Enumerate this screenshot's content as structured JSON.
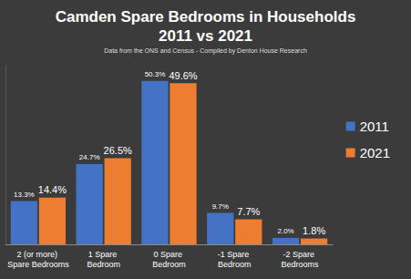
{
  "chart_data": {
    "type": "bar",
    "title": "Camden Spare Bedrooms in Households\n2011 vs 2021",
    "subtitle": "Data from the ONS and Census - Compiled by Denton House Research",
    "categories": [
      "2 (or more) Spare Bedrooms",
      "1 Spare Bedroom",
      "0 Spare Bedroom",
      "-1 Spare Bedroom",
      "-2 Spare Bedrooms"
    ],
    "series": [
      {
        "name": "2011",
        "color": "#4472c4",
        "values": [
          13.3,
          24.7,
          50.3,
          9.7,
          2.0
        ],
        "value_labels": [
          "13.3%",
          "24.7%",
          "50.3%",
          "9.7%",
          "2.0%"
        ]
      },
      {
        "name": "2021",
        "color": "#ed7d31",
        "values": [
          14.4,
          26.5,
          49.6,
          7.7,
          1.8
        ],
        "value_labels": [
          "14.4%",
          "26.5%",
          "49.6%",
          "7.7%",
          "1.8%"
        ]
      }
    ],
    "ylim": [
      0,
      55
    ],
    "grid": false,
    "legend": "right",
    "data_labels": true,
    "tick_labels": "x"
  }
}
